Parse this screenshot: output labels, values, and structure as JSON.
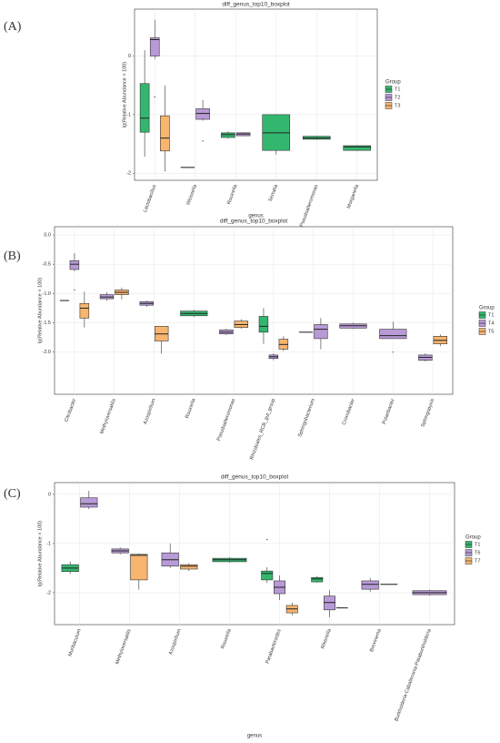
{
  "chart_data": [
    {
      "type": "boxplot",
      "panel_label": "(A)",
      "title": "diff_genus_top10_boxplot",
      "x_label": "genus",
      "y_label": "lg(Relative Abundance × 100)",
      "legend_title": "Group",
      "legend": "right",
      "grid": true,
      "categories": [
        "Lactobacillus",
        "Weissella",
        "Rouxiella",
        "Serratia",
        "Pseudoalteromonas",
        "Morganella"
      ],
      "ylim": [
        -2.12,
        0.8
      ],
      "yticks": [
        -2,
        -1,
        0
      ],
      "series": [
        {
          "name": "T1",
          "color": "#33b76e",
          "values": [
            {
              "min": -1.72,
              "q1": -1.3,
              "median": -1.06,
              "q3": -0.47,
              "max": 0.1
            },
            {
              "min": -1.9,
              "q1": -1.9,
              "median": -1.9,
              "q3": -1.9,
              "max": -1.9
            },
            {
              "min": -1.41,
              "q1": -1.39,
              "median": -1.34,
              "q3": -1.31,
              "max": -1.29
            },
            {
              "min": -1.68,
              "q1": -1.61,
              "median": -1.31,
              "q3": -1.0,
              "max": -1.0
            },
            {
              "min": -1.43,
              "q1": -1.42,
              "median": -1.4,
              "q3": -1.37,
              "max": -1.36
            },
            {
              "min": -1.62,
              "q1": -1.61,
              "median": -1.55,
              "q3": -1.53,
              "max": -1.53
            }
          ]
        },
        {
          "name": "T2",
          "color": "#b89ad6",
          "values": [
            {
              "min": -0.05,
              "q1": 0,
              "median": 0.28,
              "q3": 0.31,
              "max": 0.62,
              "outliers": [
                -0.7
              ]
            },
            {
              "min": -1.1,
              "q1": -1.08,
              "median": -0.98,
              "q3": -0.9,
              "max": -0.75,
              "outliers": [
                -1.45
              ]
            },
            {
              "min": -1.37,
              "q1": -1.36,
              "median": -1.33,
              "q3": -1.31,
              "max": -1.3
            },
            null,
            null,
            null
          ]
        },
        {
          "name": "T3",
          "color": "#f7b56f",
          "values": [
            {
              "min": -1.97,
              "q1": -1.62,
              "median": -1.4,
              "q3": -1.02,
              "max": -0.5
            },
            null,
            null,
            null,
            null,
            null
          ]
        }
      ]
    },
    {
      "type": "boxplot",
      "panel_label": "(B)",
      "title": "diff_genus_top10_boxplot",
      "y_label": "lg(Relative Abundance × 100)",
      "legend_title": "Group",
      "legend": "right",
      "grid": true,
      "categories": [
        "Citrobacter",
        "Methyloversatilis",
        "Azospirillum",
        "Rouxiella",
        "Pseudoalteromonas",
        "Rhizobiales_RCB_gut_group",
        "Sphingobacterium",
        "Cronobacter",
        "Polaribacter",
        "Sphingopyxis"
      ],
      "ylim": [
        -2.72,
        0.14
      ],
      "yticks": [
        {
          "value": -2,
          "label": "-2.0"
        },
        -1.5,
        {
          "value": -1,
          "label": "-1.0"
        },
        -0.5,
        {
          "value": 0,
          "label": "0.0"
        }
      ],
      "series": [
        {
          "name": "T1",
          "color": "#33b76e",
          "values": [
            {
              "min": -1.12,
              "q1": -1.12,
              "median": -1.12,
              "q3": -1.12,
              "max": -1.12
            },
            null,
            null,
            {
              "min": -1.4,
              "q1": -1.38,
              "median": -1.34,
              "q3": -1.3,
              "max": -1.28
            },
            null,
            {
              "min": -1.86,
              "q1": -1.66,
              "median": -1.56,
              "q3": -1.39,
              "max": -1.25
            },
            {
              "min": -1.66,
              "q1": -1.66,
              "median": -1.66,
              "q3": -1.66,
              "max": -1.66
            },
            null,
            null,
            null
          ]
        },
        {
          "name": "T4",
          "color": "#b89ad6",
          "values": [
            {
              "min": -0.62,
              "q1": -0.59,
              "median": -0.5,
              "q3": -0.44,
              "max": -0.31,
              "outliers": [
                -0.94
              ]
            },
            {
              "min": -1.12,
              "q1": -1.09,
              "median": -1.06,
              "q3": -1.02,
              "max": -0.98
            },
            {
              "min": -1.23,
              "q1": -1.2,
              "median": -1.17,
              "q3": -1.14,
              "max": -1.12
            },
            null,
            {
              "min": -1.71,
              "q1": -1.69,
              "median": -1.66,
              "q3": -1.62,
              "max": -1.6
            },
            {
              "min": -2.14,
              "q1": -2.11,
              "median": -2.08,
              "q3": -2.05,
              "max": -2.02
            },
            {
              "min": -1.95,
              "q1": -1.77,
              "median": -1.61,
              "q3": -1.53,
              "max": -1.42
            },
            {
              "min": -1.6,
              "q1": -1.59,
              "median": -1.55,
              "q3": -1.52,
              "max": -1.5
            },
            {
              "min": -1.77,
              "q1": -1.77,
              "median": -1.72,
              "q3": -1.61,
              "max": -1.48,
              "outliers": [
                -2.0
              ]
            },
            {
              "min": -2.16,
              "q1": -2.14,
              "median": -2.09,
              "q3": -2.05,
              "max": -2.02
            }
          ]
        },
        {
          "name": "T5",
          "color": "#f7b56f",
          "values": [
            {
              "min": -1.58,
              "q1": -1.42,
              "median": -1.25,
              "q3": -1.17,
              "max": -0.97
            },
            {
              "min": -1.1,
              "q1": -1.02,
              "median": -0.98,
              "q3": -0.94,
              "max": -0.9
            },
            {
              "min": -2.03,
              "q1": -1.81,
              "median": -1.69,
              "q3": -1.56,
              "max": -1.56
            },
            null,
            {
              "min": -1.6,
              "q1": -1.58,
              "median": -1.53,
              "q3": -1.47,
              "max": -1.44
            },
            {
              "min": -1.98,
              "q1": -1.95,
              "median": -1.87,
              "q3": -1.78,
              "max": -1.73
            },
            null,
            null,
            null,
            {
              "min": -1.9,
              "q1": -1.86,
              "median": -1.8,
              "q3": -1.73,
              "max": -1.7
            }
          ]
        }
      ]
    },
    {
      "type": "boxplot",
      "panel_label": "(C)",
      "title": "diff_genus_top10_boxplot",
      "x_label": "genus",
      "y_label": "lg(Relative Abundance × 100)",
      "legend_title": "Group",
      "legend": "right",
      "grid": true,
      "categories": [
        "Muribaculum",
        "Methyloversatilis",
        "Azospirillum",
        "Rouxiella",
        "Parabacteroides",
        "Rikenella",
        "Brevinema",
        "Burkholderia-Caballeronia-Paraburkholderia"
      ],
      "ylim": [
        -2.65,
        0.24
      ],
      "yticks": [
        -2,
        -1,
        0
      ],
      "series": [
        {
          "name": "T1",
          "color": "#33b76e",
          "values": [
            {
              "min": -1.62,
              "q1": -1.57,
              "median": -1.5,
              "q3": -1.43,
              "max": -1.37
            },
            null,
            null,
            {
              "min": -1.39,
              "q1": -1.37,
              "median": -1.33,
              "q3": -1.3,
              "max": -1.28
            },
            {
              "min": -1.8,
              "q1": -1.74,
              "median": -1.61,
              "q3": -1.56,
              "max": -1.48,
              "outliers": [
                -0.92
              ]
            },
            {
              "min": -1.8,
              "q1": -1.78,
              "median": -1.72,
              "q3": -1.69,
              "max": -1.66
            },
            null,
            null
          ]
        },
        {
          "name": "T6",
          "color": "#b89ad6",
          "values": [
            {
              "min": -0.3,
              "q1": -0.26,
              "median": -0.19,
              "q3": -0.07,
              "max": 0.07
            },
            {
              "min": -1.22,
              "q1": -1.19,
              "median": -1.15,
              "q3": -1.11,
              "max": -1.08
            },
            {
              "min": -1.5,
              "q1": -1.46,
              "median": -1.33,
              "q3": -1.19,
              "max": -1.0
            },
            null,
            {
              "min": -2.15,
              "q1": -2.02,
              "median": -1.89,
              "q3": -1.76,
              "max": -1.65
            },
            {
              "min": -2.5,
              "q1": -2.35,
              "median": -2.2,
              "q3": -2.07,
              "max": -1.95
            },
            {
              "min": -1.98,
              "q1": -1.93,
              "median": -1.83,
              "q3": -1.76,
              "max": -1.7
            },
            {
              "min": -2.06,
              "q1": -2.04,
              "median": -2.0,
              "q3": -1.96,
              "max": -1.94
            }
          ]
        },
        {
          "name": "T7",
          "color": "#f7b56f",
          "values": [
            null,
            {
              "min": -1.94,
              "q1": -1.74,
              "median": -1.24,
              "q3": -1.22,
              "max": -1.2
            },
            {
              "min": -1.56,
              "q1": -1.52,
              "median": -1.46,
              "q3": -1.43,
              "max": -1.4
            },
            null,
            {
              "min": -2.46,
              "q1": -2.41,
              "median": -2.33,
              "q3": -2.26,
              "max": -2.2
            },
            {
              "min": -2.31,
              "q1": -2.31,
              "median": -2.31,
              "q3": -2.31,
              "max": -2.31
            },
            {
              "min": -1.83,
              "q1": -1.83,
              "median": -1.83,
              "q3": -1.83,
              "max": -1.83
            },
            null
          ]
        }
      ]
    }
  ]
}
